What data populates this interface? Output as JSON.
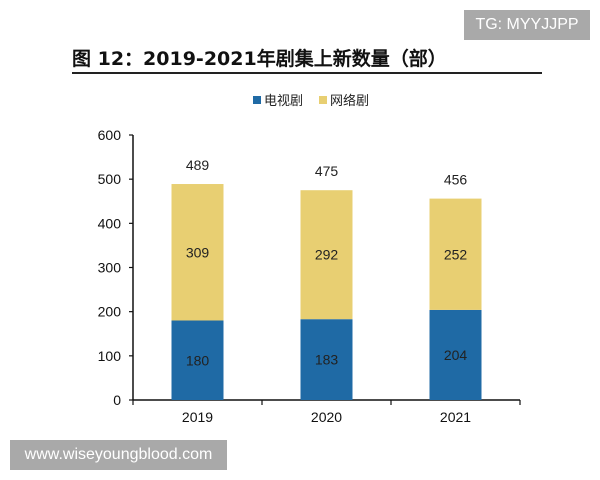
{
  "watermarks": {
    "top": "TG: MYYJJPP",
    "bottom": "www.wiseyoungblood.com"
  },
  "chart_data": {
    "type": "bar",
    "stacked": true,
    "title": "图 12：2019-2021年剧集上新数量（部）",
    "categories": [
      "2019",
      "2020",
      "2021"
    ],
    "series": [
      {
        "name": "电视剧",
        "color": "#1f6aa5",
        "values": [
          180,
          183,
          204
        ]
      },
      {
        "name": "网络剧",
        "color": "#e8cf72",
        "values": [
          309,
          292,
          252
        ]
      }
    ],
    "totals": [
      489,
      475,
      456
    ],
    "ylim": [
      0,
      600
    ],
    "yticks": [
      0,
      100,
      200,
      300,
      400,
      500,
      600
    ],
    "grid": false,
    "legend": "top"
  }
}
